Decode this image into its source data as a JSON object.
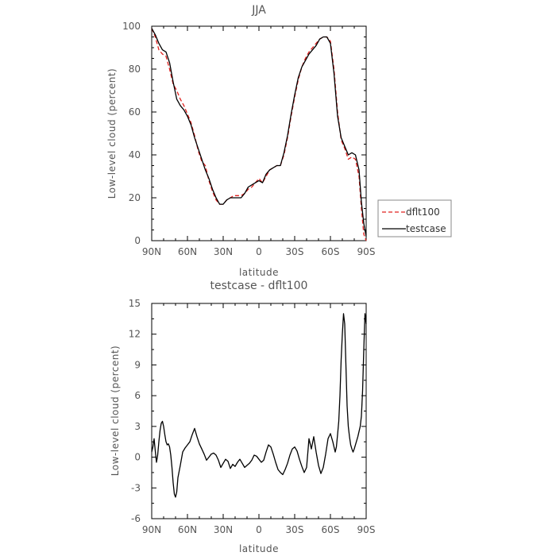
{
  "chart_data": [
    {
      "type": "line",
      "title": "JJA",
      "xlabel": "latitude",
      "ylabel": "Low-level cloud (percent)",
      "xlim": [
        -90,
        90
      ],
      "ylim": [
        0,
        100
      ],
      "xticks": [
        -90,
        -60,
        -30,
        0,
        30,
        60,
        90
      ],
      "xtick_labels": [
        "90N",
        "60N",
        "30N",
        "0",
        "30S",
        "60S",
        "90S"
      ],
      "yticks": [
        0,
        20,
        40,
        60,
        80,
        100
      ],
      "ytick_labels": [
        "0",
        "20",
        "40",
        "60",
        "80",
        "100"
      ],
      "legend": [
        "dflt100",
        "testcase"
      ],
      "legend_position": "right",
      "series": [
        {
          "name": "dflt100",
          "color": "#e0201e",
          "dash": "dashed",
          "x": [
            -90,
            -87,
            -84,
            -81,
            -78,
            -75,
            -72,
            -69,
            -66,
            -63,
            -60,
            -57,
            -54,
            -51,
            -48,
            -45,
            -42,
            -39,
            -36,
            -33,
            -30,
            -27,
            -24,
            -21,
            -18,
            -15,
            -12,
            -9,
            -6,
            -3,
            0,
            3,
            6,
            9,
            12,
            15,
            18,
            21,
            24,
            27,
            30,
            33,
            36,
            39,
            42,
            45,
            48,
            51,
            54,
            57,
            60,
            63,
            66,
            69,
            72,
            75,
            78,
            81,
            84,
            86,
            88,
            90
          ],
          "y": [
            99,
            95,
            89,
            87,
            86,
            80,
            73,
            70,
            66,
            63,
            59,
            55,
            49,
            42,
            37,
            35,
            28,
            23,
            19,
            17,
            17,
            19,
            20,
            21,
            21,
            21,
            22,
            24,
            25,
            27,
            29,
            27,
            30,
            33,
            34,
            35,
            35,
            40,
            48,
            58,
            67,
            75,
            81,
            85,
            88,
            90,
            92,
            94,
            95,
            95,
            93,
            80,
            60,
            47,
            43,
            38,
            39,
            38,
            30,
            15,
            3,
            0
          ]
        },
        {
          "name": "testcase",
          "color": "#000000",
          "dash": "solid",
          "x": [
            -90,
            -87,
            -84,
            -81,
            -78,
            -75,
            -72,
            -69,
            -66,
            -63,
            -60,
            -57,
            -54,
            -51,
            -48,
            -45,
            -42,
            -39,
            -36,
            -33,
            -30,
            -27,
            -24,
            -21,
            -18,
            -15,
            -12,
            -9,
            -6,
            -3,
            0,
            3,
            6,
            9,
            12,
            15,
            18,
            21,
            24,
            27,
            30,
            33,
            36,
            39,
            42,
            45,
            48,
            51,
            54,
            57,
            60,
            63,
            66,
            69,
            72,
            75,
            78,
            81,
            84,
            86,
            88,
            90
          ],
          "y": [
            99,
            96,
            92,
            89,
            88,
            83,
            74,
            66,
            63,
            61,
            58,
            54,
            48,
            43,
            38,
            33,
            29,
            24,
            20,
            17,
            17,
            19,
            20,
            20,
            20,
            20,
            22,
            25,
            26,
            27,
            28,
            27,
            31,
            33,
            34,
            35,
            35,
            41,
            49,
            59,
            68,
            76,
            81,
            84,
            87,
            89,
            91,
            94,
            95,
            95,
            92,
            78,
            58,
            48,
            44,
            40,
            41,
            40,
            33,
            18,
            8,
            2
          ]
        }
      ]
    },
    {
      "type": "line",
      "title": "testcase - dflt100",
      "xlabel": "latitude",
      "ylabel": "Low-level cloud (percent)",
      "xlim": [
        -90,
        90
      ],
      "ylim": [
        -6,
        15
      ],
      "xticks": [
        -90,
        -60,
        -30,
        0,
        30,
        60,
        90
      ],
      "xtick_labels": [
        "90N",
        "60N",
        "30N",
        "0",
        "30S",
        "60S",
        "90S"
      ],
      "yticks": [
        -6,
        -3,
        0,
        3,
        6,
        9,
        12,
        15
      ],
      "ytick_labels": [
        "-6",
        "-3",
        "0",
        "3",
        "6",
        "9",
        "12",
        "15"
      ],
      "series": [
        {
          "color": "#000000",
          "dash": "solid",
          "x": [
            -90,
            -89,
            -88,
            -87,
            -86,
            -85,
            -84,
            -83,
            -82,
            -81,
            -80,
            -79,
            -78,
            -77,
            -76,
            -75,
            -74,
            -73,
            -72,
            -71,
            -70,
            -69,
            -68,
            -66,
            -64,
            -62,
            -60,
            -58,
            -56,
            -54,
            -52,
            -50,
            -48,
            -46,
            -44,
            -42,
            -40,
            -38,
            -36,
            -34,
            -32,
            -30,
            -28,
            -26,
            -24,
            -22,
            -20,
            -18,
            -16,
            -14,
            -12,
            -10,
            -8,
            -6,
            -4,
            -2,
            0,
            2,
            4,
            6,
            8,
            10,
            12,
            14,
            16,
            18,
            20,
            22,
            24,
            26,
            28,
            30,
            32,
            34,
            36,
            38,
            40,
            42,
            44,
            46,
            48,
            50,
            52,
            54,
            56,
            58,
            60,
            62,
            64,
            65,
            66,
            67,
            68,
            69,
            70,
            71,
            72,
            73,
            74,
            75,
            76,
            77,
            78,
            79,
            80,
            81,
            82,
            83,
            84,
            85,
            86,
            87,
            88,
            89,
            90
          ],
          "y": [
            0.5,
            1.0,
            1.8,
            0.6,
            -0.5,
            0.2,
            1.5,
            2.6,
            3.3,
            3.5,
            3.0,
            2.2,
            1.5,
            1.2,
            1.3,
            1.0,
            0.2,
            -1.0,
            -2.5,
            -3.6,
            -3.9,
            -3.4,
            -2.0,
            -0.8,
            0.5,
            0.9,
            1.2,
            1.5,
            2.2,
            2.8,
            2.0,
            1.3,
            0.8,
            0.3,
            -0.3,
            0.0,
            0.3,
            0.4,
            0.2,
            -0.3,
            -1.0,
            -0.6,
            -0.2,
            -0.4,
            -1.1,
            -0.7,
            -0.9,
            -0.5,
            -0.2,
            -0.6,
            -1.0,
            -0.8,
            -0.6,
            -0.3,
            0.2,
            0.1,
            -0.2,
            -0.5,
            -0.3,
            0.5,
            1.2,
            1.0,
            0.3,
            -0.5,
            -1.2,
            -1.5,
            -1.7,
            -1.2,
            -0.6,
            0.2,
            0.8,
            1.0,
            0.6,
            -0.2,
            -0.9,
            -1.5,
            -1.0,
            1.8,
            0.8,
            2.0,
            0.5,
            -0.8,
            -1.6,
            -1.0,
            0.3,
            1.8,
            2.3,
            1.5,
            0.5,
            1.0,
            2.2,
            3.5,
            6.0,
            9.5,
            12.0,
            14.0,
            13.0,
            9.0,
            5.0,
            3.0,
            2.0,
            1.2,
            0.8,
            0.5,
            0.8,
            1.2,
            1.6,
            2.0,
            2.5,
            3.0,
            4.0,
            6.5,
            10.5,
            14.0,
            13.0
          ]
        }
      ]
    }
  ]
}
